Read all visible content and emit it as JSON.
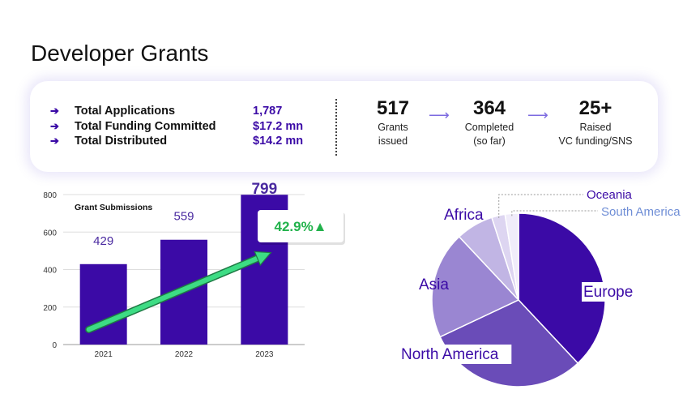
{
  "page": {
    "title": "Developer Grants"
  },
  "summary": {
    "metrics": [
      {
        "label": "Total Applications",
        "value": "1,787"
      },
      {
        "label": "Total Funding Committed",
        "value": "$17.2 mn"
      },
      {
        "label": "Total Distributed",
        "value": "$14.2 mn"
      }
    ],
    "arrow_glyph": "➔",
    "kpis": [
      {
        "value": "517",
        "line1": "Grants",
        "line2": "issued"
      },
      {
        "value": "364",
        "line1": "Completed",
        "line2": "(so far)"
      },
      {
        "value": "25+",
        "line1": "Raised",
        "line2": "VC funding/SNS"
      }
    ],
    "flow_arrow": "⟶"
  },
  "chart_data": [
    {
      "type": "bar",
      "title": "Grant Submissions",
      "categories": [
        "2021",
        "2022",
        "2023"
      ],
      "values": [
        429,
        559,
        799
      ],
      "data_labels": [
        "429",
        "559",
        "799"
      ],
      "ylim": [
        0,
        800
      ],
      "yticks": [
        0,
        200,
        400,
        600,
        800
      ],
      "grid": true,
      "bar_color": "#3b0aa6",
      "annotation": {
        "text": "42.9%▲",
        "color": "#22b24c"
      }
    },
    {
      "type": "pie",
      "labels": [
        "Europe",
        "North America",
        "Asia",
        "Africa",
        "Oceania",
        "South America"
      ],
      "values": [
        38,
        30,
        20,
        7,
        2.5,
        2.5
      ],
      "colors": [
        "#3b0aa6",
        "#6a4cb8",
        "#9a86d2",
        "#c1b5e4",
        "#ddd5f1",
        "#f0ecfa"
      ],
      "label_colors": [
        "#3b0aa6",
        "#3b0aa6",
        "#3b0aa6",
        "#3b0aa6",
        "#3b0aa6",
        "#6f8ed6"
      ]
    }
  ]
}
